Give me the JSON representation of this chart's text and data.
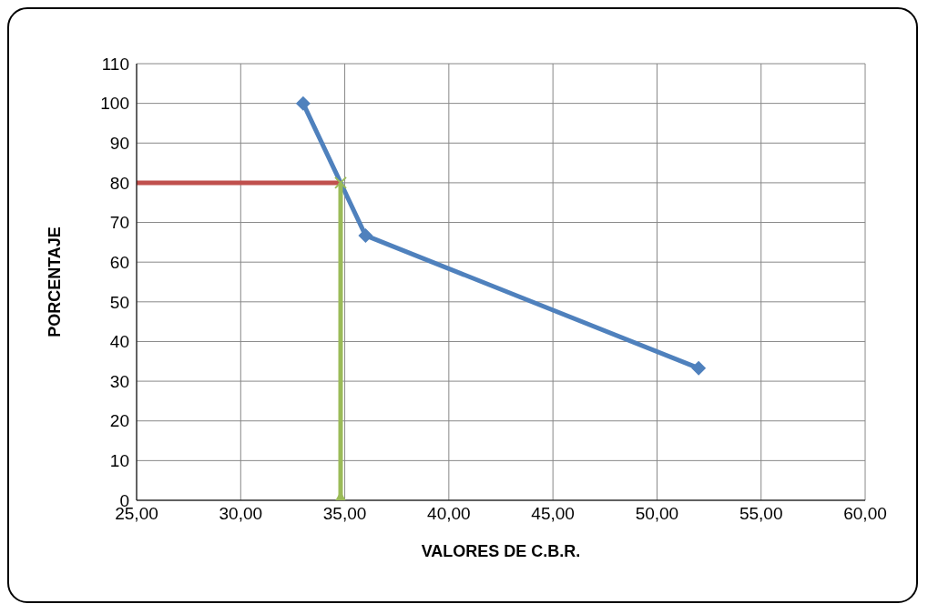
{
  "chart_data": {
    "type": "line",
    "xlabel": "VALORES DE C.B.R.",
    "ylabel": "PORCENTAJE",
    "series": [
      {
        "color": "#4f81bd",
        "x": [
          33,
          36,
          52
        ],
        "values": [
          100,
          66.7,
          33.3
        ],
        "marker": "diamond"
      },
      {
        "color": "#c0504d",
        "x": [
          25,
          34.8
        ],
        "values": [
          80,
          80
        ],
        "marker": "none"
      },
      {
        "color": "#9bbb59",
        "x": [
          34.8,
          34.8
        ],
        "values": [
          0,
          80
        ],
        "marker": "none"
      },
      {
        "type": "scatter",
        "color": "#9bbb59",
        "x": [
          34.8
        ],
        "values": [
          0
        ],
        "marker": "triangle"
      },
      {
        "type": "scatter",
        "color": "#9bbb59",
        "x": [
          34.8
        ],
        "values": [
          80
        ],
        "marker": "cross"
      }
    ],
    "xlim": [
      25,
      60
    ],
    "xticks": [
      {
        "value": 25,
        "label": "25,00"
      },
      {
        "value": 30,
        "label": "30,00"
      },
      {
        "value": 35,
        "label": "35,00"
      },
      {
        "value": 40,
        "label": "40,00"
      },
      {
        "value": 45,
        "label": "45,00"
      },
      {
        "value": 50,
        "label": "50,00"
      },
      {
        "value": 55,
        "label": "55,00"
      },
      {
        "value": 60,
        "label": "60,00"
      }
    ],
    "ylim": [
      0,
      110
    ],
    "yticks": [
      0,
      10,
      20,
      30,
      40,
      50,
      60,
      70,
      80,
      90,
      100,
      110
    ],
    "grid": true,
    "legend": false,
    "line_style": "solid"
  }
}
